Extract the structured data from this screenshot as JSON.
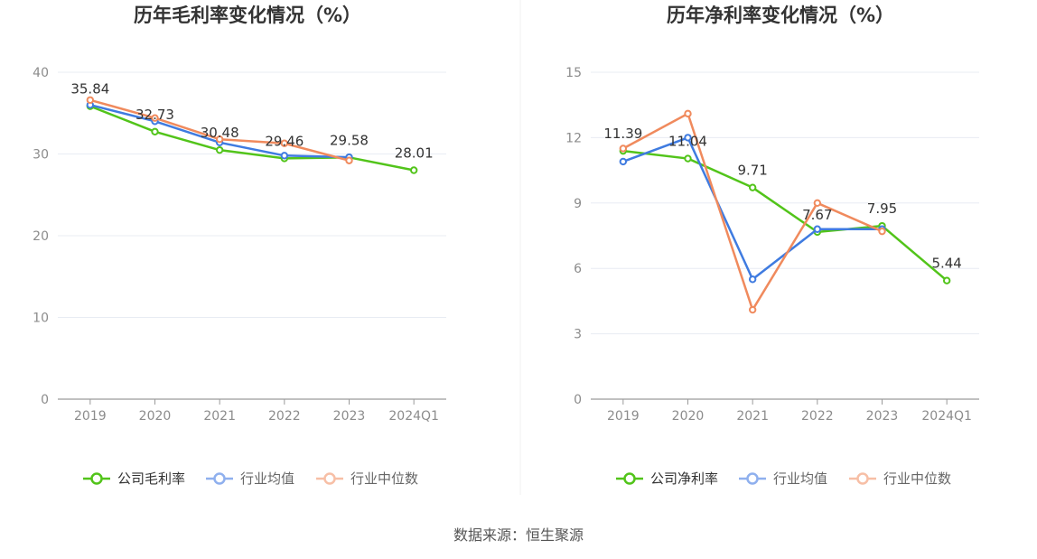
{
  "source_text": "数据来源：恒生聚源",
  "chart_data": [
    {
      "type": "line",
      "title": "历年毛利率变化情况（%）",
      "categories": [
        "2019",
        "2020",
        "2021",
        "2022",
        "2023",
        "2024Q1"
      ],
      "ylim": [
        0,
        40
      ],
      "yticks": [
        0,
        10,
        20,
        30,
        40
      ],
      "grid": true,
      "legend_position": "bottom",
      "series": [
        {
          "name": "公司毛利率",
          "color": "#52c41a",
          "values": [
            35.84,
            32.73,
            30.48,
            29.46,
            29.58,
            28.01
          ],
          "labels": [
            "35.84",
            "32.73",
            "30.48",
            "29.46",
            "29.58",
            "28.01"
          ]
        },
        {
          "name": "行业均值",
          "color": "#3f7be0",
          "legend_color": "#8fb0ee",
          "values": [
            36.0,
            34.0,
            31.4,
            29.8,
            29.6,
            null
          ]
        },
        {
          "name": "行业中位数",
          "color": "#f08a5d",
          "legend_color": "#f7bfa6",
          "values": [
            36.6,
            34.4,
            31.8,
            31.3,
            29.2,
            null
          ]
        }
      ]
    },
    {
      "type": "line",
      "title": "历年净利率变化情况（%）",
      "categories": [
        "2019",
        "2020",
        "2021",
        "2022",
        "2023",
        "2024Q1"
      ],
      "ylim": [
        0,
        15
      ],
      "yticks": [
        0,
        3,
        6,
        9,
        12,
        15
      ],
      "grid": true,
      "legend_position": "bottom",
      "series": [
        {
          "name": "公司净利率",
          "color": "#52c41a",
          "values": [
            11.39,
            11.04,
            9.71,
            7.67,
            7.95,
            5.44
          ],
          "labels": [
            "11.39",
            "11.04",
            "9.71",
            "7.67",
            "7.95",
            "5.44"
          ]
        },
        {
          "name": "行业均值",
          "color": "#3f7be0",
          "legend_color": "#8fb0ee",
          "values": [
            10.9,
            12.0,
            5.5,
            7.8,
            7.8,
            null
          ]
        },
        {
          "name": "行业中位数",
          "color": "#f08a5d",
          "legend_color": "#f7bfa6",
          "values": [
            11.5,
            13.1,
            4.1,
            9.0,
            7.7,
            null
          ]
        }
      ]
    }
  ]
}
